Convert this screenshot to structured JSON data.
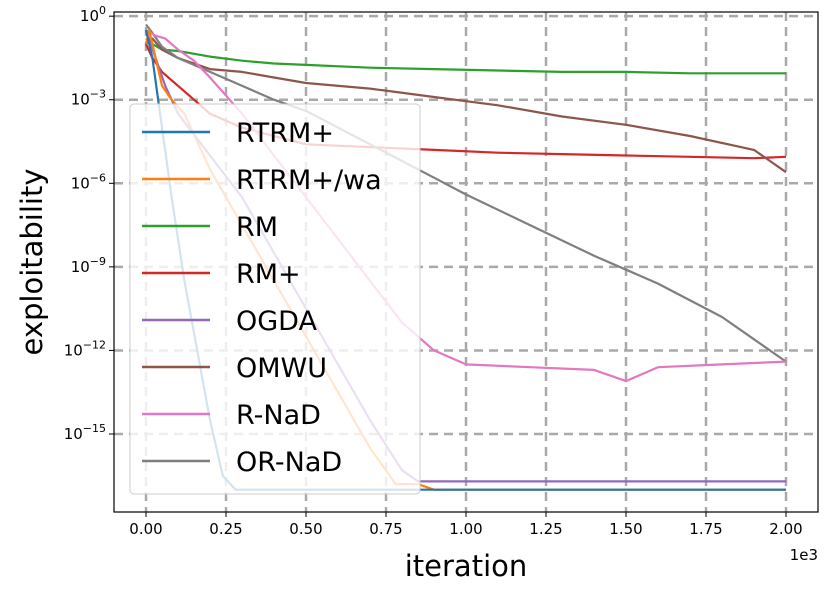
{
  "chart_data": {
    "type": "line",
    "title": "",
    "xlabel": "iteration",
    "ylabel": "exploitability",
    "x_offset_label": "1e3",
    "xlim": [
      -0.1,
      2.1
    ],
    "ylim_log10": [
      -17.8,
      0.15
    ],
    "x_ticks": [
      {
        "value": 0.0,
        "label": "0.00"
      },
      {
        "value": 0.25,
        "label": "0.25"
      },
      {
        "value": 0.5,
        "label": "0.50"
      },
      {
        "value": 0.75,
        "label": "0.75"
      },
      {
        "value": 1.0,
        "label": "1.00"
      },
      {
        "value": 1.25,
        "label": "1.25"
      },
      {
        "value": 1.5,
        "label": "1.50"
      },
      {
        "value": 1.75,
        "label": "1.75"
      },
      {
        "value": 2.0,
        "label": "2.00"
      }
    ],
    "y_ticks": [
      {
        "exp": 0,
        "base": "10",
        "sup": "0"
      },
      {
        "exp": -3,
        "base": "10",
        "sup": "−3"
      },
      {
        "exp": -6,
        "base": "10",
        "sup": "−6"
      },
      {
        "exp": -9,
        "base": "10",
        "sup": "−9"
      },
      {
        "exp": -12,
        "base": "10",
        "sup": "−12"
      },
      {
        "exp": -15,
        "base": "10",
        "sup": "−15"
      }
    ],
    "grid": true,
    "legend_position": "left",
    "series": [
      {
        "name": "RTRM+",
        "color": "#1f77b4",
        "x": [
          0.0,
          0.02,
          0.05,
          0.08,
          0.12,
          0.16,
          0.2,
          0.24,
          0.28,
          2.0
        ],
        "log10_y": [
          -0.5,
          -1.5,
          -4,
          -6.5,
          -9.5,
          -12,
          -14.5,
          -16.5,
          -17.0,
          -17.0
        ]
      },
      {
        "name": "RTRM+/wa",
        "color": "#ff7f0e",
        "x": [
          0.0,
          0.01,
          0.03,
          0.05,
          0.08,
          0.12,
          0.2,
          0.3,
          0.4,
          0.5,
          0.6,
          0.7,
          0.78,
          0.85,
          0.9,
          2.0
        ],
        "log10_y": [
          -1.0,
          -0.5,
          -1.5,
          -2.5,
          -3.0,
          -3.5,
          -5.5,
          -7.5,
          -9.5,
          -11.5,
          -13.5,
          -15.5,
          -16.8,
          -16.8,
          -17.0,
          -17.0
        ]
      },
      {
        "name": "RM",
        "color": "#2ca02c",
        "x": [
          0.0,
          0.02,
          0.05,
          0.1,
          0.2,
          0.3,
          0.4,
          0.5,
          0.7,
          0.9,
          1.1,
          1.3,
          1.5,
          1.7,
          1.9,
          2.0
        ],
        "log10_y": [
          -0.8,
          -1.0,
          -1.2,
          -1.25,
          -1.45,
          -1.6,
          -1.7,
          -1.75,
          -1.85,
          -1.9,
          -1.95,
          -2.0,
          -2.0,
          -2.05,
          -2.05,
          -2.05
        ]
      },
      {
        "name": "RM+",
        "color": "#d62728",
        "x": [
          0.0,
          0.02,
          0.05,
          0.1,
          0.15,
          0.2,
          0.3,
          0.4,
          0.5,
          0.7,
          0.9,
          1.1,
          1.3,
          1.5,
          1.7,
          1.9,
          2.0
        ],
        "log10_y": [
          -1.0,
          -1.5,
          -2.0,
          -2.5,
          -3.0,
          -3.5,
          -4.0,
          -4.3,
          -4.6,
          -4.7,
          -4.8,
          -4.9,
          -4.95,
          -5.0,
          -5.05,
          -5.1,
          -5.05
        ]
      },
      {
        "name": "OGDA",
        "color": "#9467bd",
        "x": [
          0.0,
          0.03,
          0.06,
          0.1,
          0.2,
          0.3,
          0.4,
          0.5,
          0.6,
          0.7,
          0.8,
          0.85,
          0.9,
          2.0
        ],
        "log10_y": [
          -0.5,
          -1.5,
          -2.5,
          -3.5,
          -5.0,
          -6.5,
          -8.5,
          -10.5,
          -12.5,
          -14.5,
          -16.3,
          -16.7,
          -16.7,
          -16.7
        ]
      },
      {
        "name": "OMWU",
        "color": "#8c564b",
        "x": [
          0.0,
          0.02,
          0.05,
          0.1,
          0.2,
          0.3,
          0.4,
          0.5,
          0.7,
          0.9,
          1.1,
          1.3,
          1.5,
          1.7,
          1.9,
          1.95,
          2.0
        ],
        "log10_y": [
          -1.0,
          -0.8,
          -1.2,
          -1.5,
          -1.9,
          -2.0,
          -2.2,
          -2.4,
          -2.6,
          -2.9,
          -3.2,
          -3.6,
          -3.9,
          -4.3,
          -4.8,
          -5.2,
          -5.6
        ]
      },
      {
        "name": "R-NaD",
        "color": "#e377c2",
        "x": [
          0.0,
          0.03,
          0.06,
          0.1,
          0.15,
          0.2,
          0.3,
          0.4,
          0.5,
          0.6,
          0.7,
          0.8,
          0.9,
          1.0,
          1.2,
          1.4,
          1.5,
          1.6,
          1.8,
          2.0
        ],
        "log10_y": [
          -0.5,
          -0.7,
          -0.8,
          -1.2,
          -1.6,
          -2.2,
          -3.5,
          -5.0,
          -6.5,
          -8.0,
          -9.5,
          -11.0,
          -12.0,
          -12.5,
          -12.6,
          -12.7,
          -13.1,
          -12.6,
          -12.5,
          -12.4
        ]
      },
      {
        "name": "OR-NaD",
        "color": "#7f7f7f",
        "x": [
          0.0,
          0.02,
          0.05,
          0.1,
          0.2,
          0.3,
          0.4,
          0.5,
          0.6,
          0.7,
          0.8,
          0.9,
          1.0,
          1.2,
          1.4,
          1.6,
          1.8,
          1.9,
          2.0
        ],
        "log10_y": [
          -0.3,
          -0.6,
          -1.1,
          -1.5,
          -2.0,
          -2.5,
          -3.0,
          -3.4,
          -4.0,
          -4.6,
          -5.2,
          -5.8,
          -6.4,
          -7.5,
          -8.6,
          -9.6,
          -10.8,
          -11.6,
          -12.4
        ]
      }
    ]
  }
}
